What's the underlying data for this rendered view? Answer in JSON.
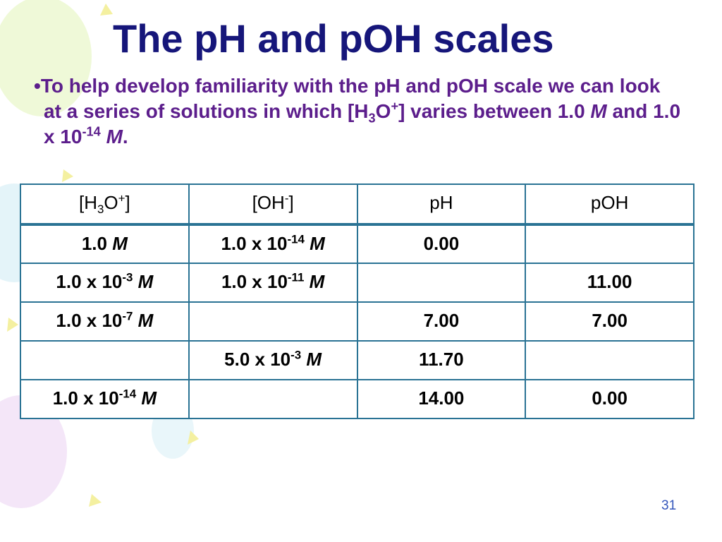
{
  "title": "The pH and pOH scales",
  "bullet": [
    {
      "text": "To help develop familiarity with the pH and pOH scale we can look at a series of solutions in which [H"
    },
    {
      "sub": "3"
    },
    {
      "text": "O"
    },
    {
      "sup": "+"
    },
    {
      "text": "] varies between 1.0 "
    },
    {
      "em": "M"
    },
    {
      "text": " and 1.0 x 10"
    },
    {
      "sup": "-14"
    },
    {
      "text": " "
    },
    {
      "em": "M"
    },
    {
      "text": "."
    }
  ],
  "table": {
    "header": [
      [
        {
          "text": "[H"
        },
        {
          "sub": "3"
        },
        {
          "text": "O"
        },
        {
          "sup": "+"
        },
        {
          "text": "]"
        }
      ],
      [
        {
          "text": "[OH"
        },
        {
          "sup": "-"
        },
        {
          "text": "]"
        }
      ],
      [
        {
          "text": "pH"
        }
      ],
      [
        {
          "text": "pOH"
        }
      ]
    ],
    "rows": [
      [
        [
          {
            "text": "1.0 "
          },
          {
            "em": "M"
          }
        ],
        [
          {
            "text": "1.0 x 10"
          },
          {
            "sup": "-14"
          },
          {
            "text": " "
          },
          {
            "em": "M"
          }
        ],
        [
          {
            "text": "0.00"
          }
        ],
        []
      ],
      [
        [
          {
            "text": "1.0 x 10"
          },
          {
            "sup": "-3"
          },
          {
            "text": " "
          },
          {
            "em": "M"
          }
        ],
        [
          {
            "text": "1.0 x 10"
          },
          {
            "sup": "-11"
          },
          {
            "text": " "
          },
          {
            "em": "M"
          }
        ],
        [],
        [
          {
            "text": "11.00"
          }
        ]
      ],
      [
        [
          {
            "text": "1.0 x 10"
          },
          {
            "sup": "-7"
          },
          {
            "text": " "
          },
          {
            "em": "M"
          }
        ],
        [],
        [
          {
            "text": "7.00"
          }
        ],
        [
          {
            "text": "7.00"
          }
        ]
      ],
      [
        [],
        [
          {
            "text": "5.0 x 10"
          },
          {
            "sup": "-3"
          },
          {
            "text": " "
          },
          {
            "em": "M"
          }
        ],
        [
          {
            "text": "11.70"
          }
        ],
        []
      ],
      [
        [
          {
            "text": "1.0 x 10"
          },
          {
            "sup": "-14"
          },
          {
            "text": " "
          },
          {
            "em": "M"
          }
        ],
        [],
        [
          {
            "text": "14.00"
          }
        ],
        [
          {
            "text": "0.00"
          }
        ]
      ]
    ]
  },
  "page_number": "31"
}
